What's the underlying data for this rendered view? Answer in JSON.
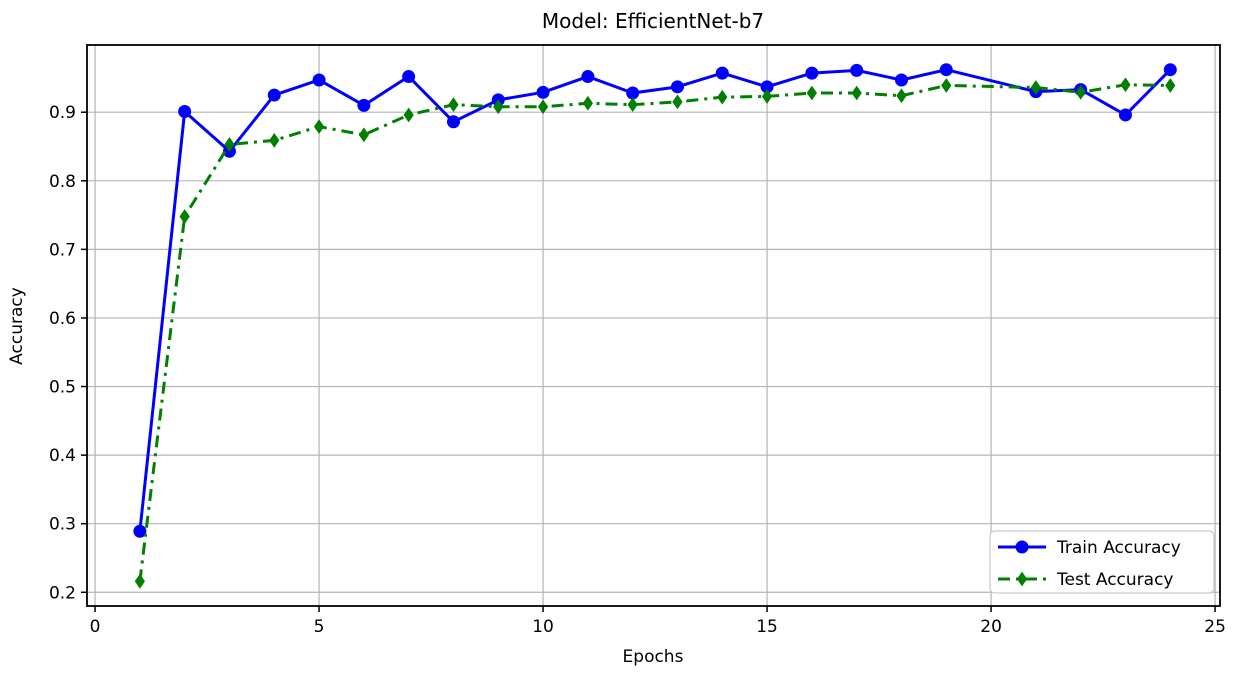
{
  "figure": {
    "background": "#ffffff",
    "spine_color": "#000000",
    "text_color": "#000000"
  },
  "chart_data": {
    "type": "line",
    "title": "Model: EfficientNet-b7",
    "xlabel": "Epochs",
    "ylabel": "Accuracy",
    "xlim": [
      -0.18,
      25.11
    ],
    "ylim": [
      0.18,
      0.998
    ],
    "xticks": [
      0,
      5,
      10,
      15,
      20,
      25
    ],
    "yticks": [
      0.2,
      0.3,
      0.4,
      0.5,
      0.6,
      0.7,
      0.8,
      0.9
    ],
    "grid": true,
    "grid_color": "#b4b4b4",
    "legend": {
      "position": "lower right",
      "border_color": "#cccccc",
      "background": "#ffffff"
    },
    "series": [
      {
        "name": "Train Accuracy",
        "color": "#0000ff",
        "line_style": "solid",
        "marker": "circle",
        "x": [
          1,
          2,
          3,
          4,
          5,
          6,
          7,
          8,
          9,
          10,
          11,
          12,
          13,
          14,
          15,
          16,
          17,
          18,
          19,
          21,
          22,
          23,
          24
        ],
        "y": [
          0.289,
          0.901,
          0.843,
          0.925,
          0.947,
          0.91,
          0.952,
          0.886,
          0.918,
          0.929,
          0.952,
          0.928,
          0.937,
          0.957,
          0.937,
          0.957,
          0.961,
          0.947,
          0.962,
          0.93,
          0.933,
          0.896,
          0.962
        ]
      },
      {
        "name": "Test Accuracy",
        "color": "#008000",
        "line_style": "dashdot",
        "marker": "diamond",
        "x": [
          1,
          2,
          3,
          4,
          5,
          6,
          7,
          8,
          9,
          10,
          11,
          12,
          13,
          14,
          15,
          16,
          17,
          18,
          19,
          21,
          22,
          23,
          24
        ],
        "y": [
          0.216,
          0.748,
          0.853,
          0.859,
          0.879,
          0.867,
          0.896,
          0.911,
          0.908,
          0.908,
          0.913,
          0.911,
          0.915,
          0.922,
          0.923,
          0.928,
          0.928,
          0.924,
          0.939,
          0.936,
          0.929,
          0.94,
          0.939
        ]
      }
    ]
  }
}
